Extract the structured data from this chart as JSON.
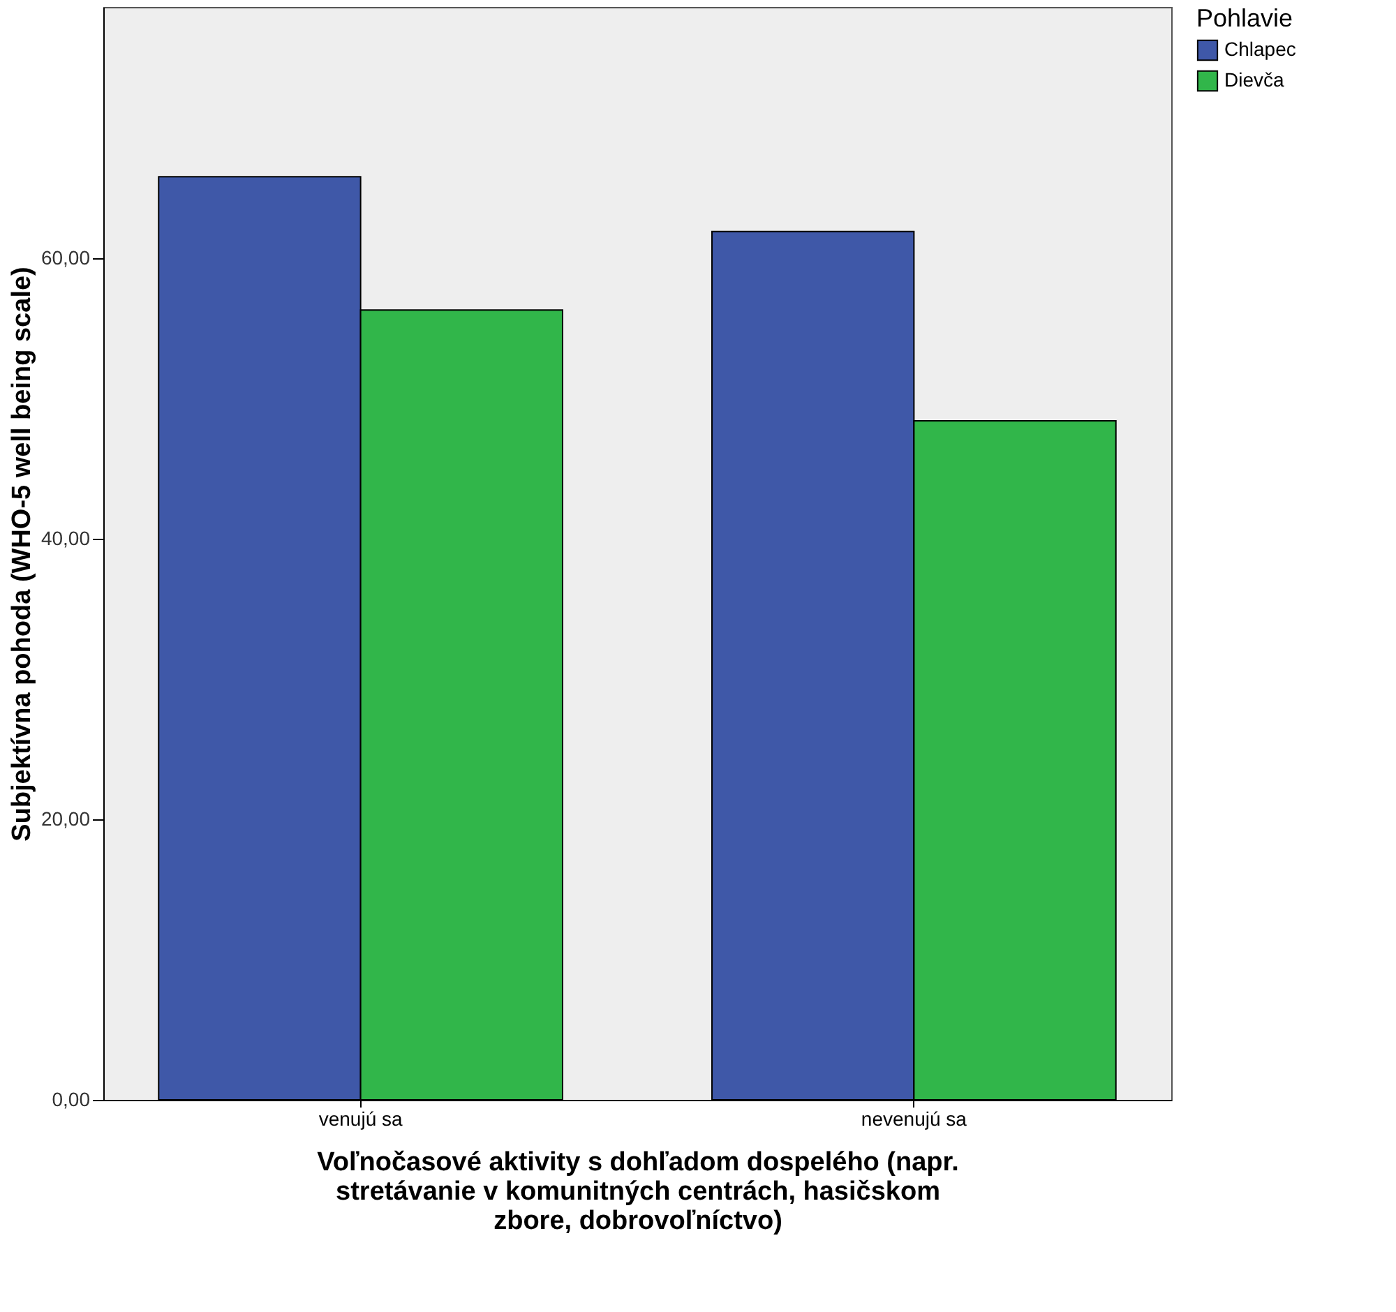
{
  "chart_data": {
    "type": "bar",
    "xlabel": "Voľnočasové aktivity s dohľadom dospelého (napr.\nstretávanie v komunitných centrách, hasičskom\nzbore, dobrovoľníctvo)",
    "ylabel": "Subjektívna pohoda (WHO-5 well being scale)",
    "legend_title": "Pohlavie",
    "categories": [
      "venujú sa",
      "nevenujú sa"
    ],
    "series": [
      {
        "name": "Chlapec",
        "color": "#3f58a8",
        "values": [
          65.8,
          61.9
        ]
      },
      {
        "name": "Dievča",
        "color": "#31b64a",
        "values": [
          56.3,
          48.4
        ]
      }
    ],
    "ylim": [
      0,
      77.9
    ],
    "yticks": [
      {
        "value": 0,
        "label": "0,00"
      },
      {
        "value": 20,
        "label": "20,00"
      },
      {
        "value": 40,
        "label": "40,00"
      },
      {
        "value": 60,
        "label": "60,00"
      }
    ],
    "grid": false,
    "legend": "top right"
  }
}
